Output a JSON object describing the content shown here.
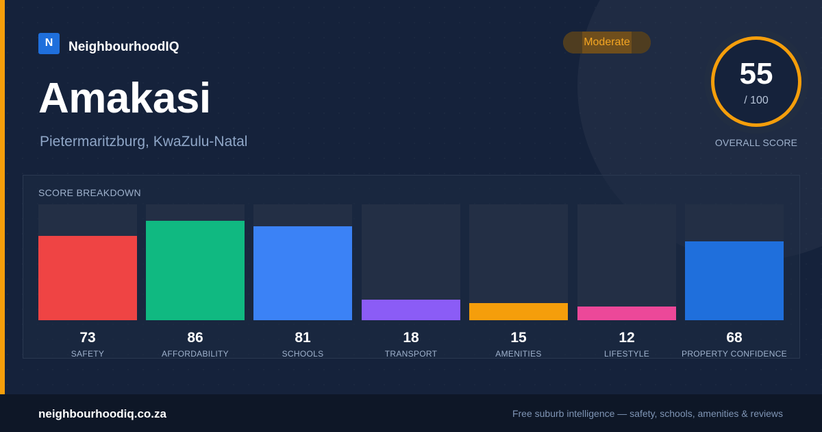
{
  "brand": {
    "logo_letter": "N",
    "name": "NeighbourhoodIQ"
  },
  "suburb": {
    "name": "Amakasi",
    "location": "Pietermaritzburg, KwaZulu-Natal"
  },
  "badge": {
    "label": "Moderate"
  },
  "overall": {
    "score": "55",
    "denominator": "/ 100",
    "caption": "OVERALL SCORE"
  },
  "breakdown": {
    "title": "SCORE BREAKDOWN",
    "max": 100,
    "items": [
      {
        "value": 73,
        "label": "SAFETY",
        "color": "#ef4444"
      },
      {
        "value": 86,
        "label": "AFFORDABILITY",
        "color": "#10b981"
      },
      {
        "value": 81,
        "label": "SCHOOLS",
        "color": "#3b82f6"
      },
      {
        "value": 18,
        "label": "TRANSPORT",
        "color": "#8b5cf6"
      },
      {
        "value": 15,
        "label": "AMENITIES",
        "color": "#f59e0b"
      },
      {
        "value": 12,
        "label": "LIFESTYLE",
        "color": "#ec4899"
      },
      {
        "value": 68,
        "label": "PROPERTY CONFIDENCE",
        "color": "#1f6fdc"
      }
    ]
  },
  "footer": {
    "domain": "neighbourhoodiq.co.za",
    "tagline": "Free suburb intelligence — safety, schools, amenities & reviews"
  },
  "colors": {
    "accent": "#f59e0b",
    "background": "#15223b",
    "brand_blue": "#1f6fdc"
  }
}
